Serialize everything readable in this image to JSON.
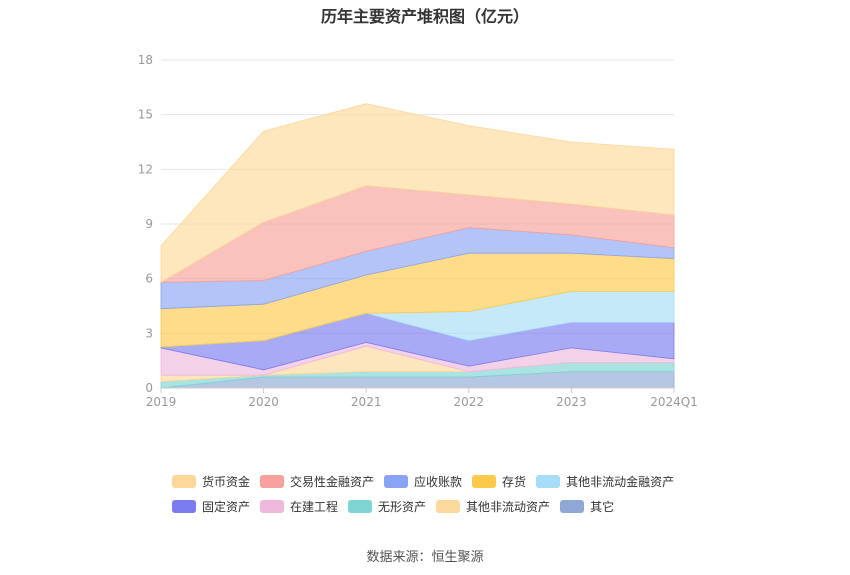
{
  "chart_data": {
    "type": "area",
    "stacked": true,
    "title": "历年主要资产堆积图（亿元）",
    "categories": [
      "2019",
      "2020",
      "2021",
      "2022",
      "2023",
      "2024Q1"
    ],
    "yticks": [
      0,
      3,
      6,
      9,
      12,
      15,
      18
    ],
    "ylim": [
      0,
      18
    ],
    "grid": true,
    "legend_position": "bottom",
    "series_stack_order": [
      "其它",
      "无形资产",
      "其他非流动资产",
      "在建工程",
      "固定资产",
      "其他非流动金融资产",
      "存货",
      "应收账款",
      "交易性金融资产",
      "货币资金"
    ],
    "series": [
      {
        "name": "其它",
        "color": "#8FA9D6",
        "values": [
          0.0,
          0.6,
          0.6,
          0.6,
          0.9,
          0.9
        ]
      },
      {
        "name": "无形资产",
        "color": "#7ED3D3",
        "values": [
          0.35,
          0.1,
          0.3,
          0.3,
          0.5,
          0.5
        ]
      },
      {
        "name": "其他非流动资产",
        "color": "#FCD89A",
        "values": [
          0.35,
          0.0,
          1.4,
          0.0,
          0.0,
          0.0
        ]
      },
      {
        "name": "在建工程",
        "color": "#EDB8DC",
        "values": [
          1.5,
          0.3,
          0.2,
          0.3,
          0.8,
          0.2
        ]
      },
      {
        "name": "固定资产",
        "color": "#7B7CF0",
        "values": [
          0.05,
          1.6,
          1.6,
          1.4,
          1.4,
          2.0
        ]
      },
      {
        "name": "其他非流动金融资产",
        "color": "#A8DDF7",
        "values": [
          0.0,
          0.0,
          0.0,
          1.6,
          1.7,
          1.7
        ]
      },
      {
        "name": "存货",
        "color": "#FDC94A",
        "values": [
          2.1,
          2.0,
          2.1,
          3.2,
          2.1,
          1.8
        ]
      },
      {
        "name": "应收账款",
        "color": "#8AA4F5",
        "values": [
          1.45,
          1.3,
          1.3,
          1.4,
          1.0,
          0.6
        ]
      },
      {
        "name": "交易性金融资产",
        "color": "#F8A19A",
        "values": [
          0.0,
          3.2,
          3.6,
          1.8,
          1.7,
          1.8
        ]
      },
      {
        "name": "货币资金",
        "color": "#FDD89A",
        "values": [
          2.0,
          5.0,
          4.5,
          3.8,
          3.4,
          3.6
        ]
      }
    ]
  },
  "legend": {
    "items": [
      {
        "label": "货币资金",
        "color": "#FDD89A"
      },
      {
        "label": "交易性金融资产",
        "color": "#F8A19A"
      },
      {
        "label": "应收账款",
        "color": "#8AA4F5"
      },
      {
        "label": "存货",
        "color": "#FDC94A"
      },
      {
        "label": "其他非流动金融资产",
        "color": "#A8DDF7"
      },
      {
        "label": "固定资产",
        "color": "#7B7CF0"
      },
      {
        "label": "在建工程",
        "color": "#EDB8DC"
      },
      {
        "label": "无形资产",
        "color": "#7ED3D3"
      },
      {
        "label": "其他非流动资产",
        "color": "#FCD89A"
      },
      {
        "label": "其它",
        "color": "#8FA9D6"
      }
    ]
  },
  "source": "数据来源：恒生聚源"
}
